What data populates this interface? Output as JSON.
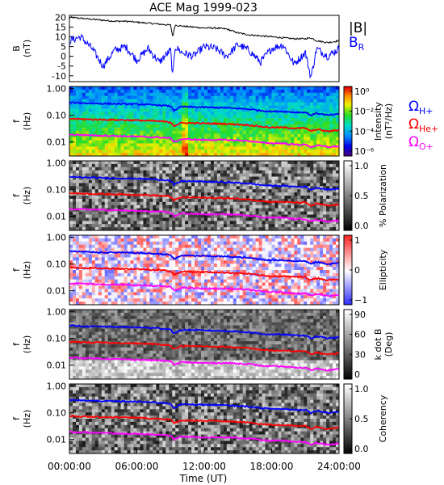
{
  "title": "ACE Mag 1999-023",
  "time_axis": {
    "label": "Time (UT)",
    "ticks": [
      "00:00:00",
      "06:00:00",
      "12:00:00",
      "18:00:00",
      "24:00:00"
    ],
    "range_hours": [
      0,
      24
    ]
  },
  "colors": {
    "B_total": "#000000",
    "B_R": "#0000ff",
    "H": "#0000ff",
    "He": "#ff0000",
    "O": "#ff00ff"
  },
  "chart_data": [
    {
      "type": "line",
      "panel": "magnetic-field",
      "ylabel": "B",
      "yunit": "(nT)",
      "ylim": [
        -13,
        21
      ],
      "yticks": [
        20,
        15,
        10,
        5,
        0,
        -5,
        -10
      ],
      "legend": [
        {
          "name": "|B|",
          "color": "#000000"
        },
        {
          "name": "B",
          "sub": "R",
          "color": "#0000ff"
        }
      ],
      "x": [
        0,
        1,
        2,
        3,
        4,
        5,
        6,
        7,
        8,
        9,
        9.2,
        9.4,
        10,
        11,
        12,
        13,
        14,
        15,
        16,
        17,
        18,
        19,
        20,
        21,
        21.5,
        22,
        23,
        24
      ],
      "series": [
        {
          "name": "|B|",
          "color": "#000000",
          "values": [
            20,
            19.5,
            19,
            18.5,
            18,
            18,
            17.5,
            17,
            16.5,
            16,
            10,
            16,
            15.5,
            15,
            14.5,
            14.5,
            14,
            12,
            11,
            10.5,
            10,
            9.5,
            9,
            9,
            9.5,
            8,
            7,
            8
          ]
        },
        {
          "name": "B_R",
          "color": "#0000ff",
          "values": [
            8,
            10,
            4,
            -5,
            3,
            5,
            -2,
            4,
            -3,
            3,
            -11,
            5,
            2,
            0,
            5,
            4,
            0,
            6,
            3,
            -3,
            4,
            6,
            -4,
            2,
            -11,
            4,
            0,
            4
          ]
        }
      ]
    },
    {
      "type": "heatmap",
      "panel": "intensity",
      "ylabel": "f",
      "yunit": "(Hz)",
      "ylim_log": [
        0.003,
        1.2
      ],
      "yticks": [
        "1.00",
        "0.10",
        "0.01"
      ],
      "colorbar": {
        "label": "Intensity",
        "unit": "(nT²/Hz)",
        "palette": "rainbow",
        "ticks": [
          "10⁰",
          "10⁻²",
          "10⁻⁴",
          "10⁻⁶"
        ]
      },
      "lines": [
        "Ω_H+",
        "Ω_He+",
        "Ω_O+"
      ],
      "line_labels": [
        {
          "base": "Ω",
          "sub": "H+",
          "color": "#0000ff"
        },
        {
          "base": "Ω",
          "sub": "He+",
          "color": "#ff0000"
        },
        {
          "base": "Ω",
          "sub": "O+",
          "color": "#ff00ff"
        }
      ]
    },
    {
      "type": "heatmap",
      "panel": "polarization",
      "ylabel": "f",
      "yunit": "(Hz)",
      "yticks": [
        "1.00",
        "0.10",
        "0.01"
      ],
      "colorbar": {
        "label": "% Polarization",
        "palette": "gray",
        "ticks": [
          "1.0",
          "0.5",
          "0.0"
        ]
      }
    },
    {
      "type": "heatmap",
      "panel": "ellipticity",
      "ylabel": "f",
      "yunit": "(Hz)",
      "yticks": [
        "1.00",
        "0.10",
        "0.01"
      ],
      "colorbar": {
        "label": "Ellipticity",
        "palette": "bluewhitered",
        "ticks": [
          "1",
          "0",
          "−1"
        ]
      }
    },
    {
      "type": "heatmap",
      "panel": "k-dot-b",
      "ylabel": "f",
      "yunit": "(Hz)",
      "yticks": [
        "1.00",
        "0.10",
        "0.01"
      ],
      "colorbar": {
        "label": "k dot B",
        "unit": "(Deg)",
        "palette": "gray",
        "ticks": [
          "90",
          "60",
          "30",
          "0"
        ]
      }
    },
    {
      "type": "heatmap",
      "panel": "coherency",
      "ylabel": "f",
      "yunit": "(Hz)",
      "yticks": [
        "1.00",
        "0.10",
        "0.01"
      ],
      "colorbar": {
        "label": "Coherency",
        "palette": "gray",
        "ticks": [
          "1.0",
          "0.5",
          "0.0"
        ]
      }
    }
  ],
  "cyclotron_lines": {
    "x": [
      0,
      2,
      4,
      6,
      8,
      9,
      9.3,
      10,
      12,
      14,
      16,
      17,
      18,
      19,
      20,
      21,
      21.5,
      22,
      23,
      24
    ],
    "H+": [
      0.3,
      0.28,
      0.27,
      0.26,
      0.24,
      0.22,
      0.15,
      0.21,
      0.2,
      0.19,
      0.17,
      0.15,
      0.14,
      0.14,
      0.13,
      0.13,
      0.1,
      0.12,
      0.1,
      0.11
    ],
    "He+": [
      0.075,
      0.07,
      0.068,
      0.065,
      0.06,
      0.055,
      0.04,
      0.052,
      0.05,
      0.048,
      0.043,
      0.038,
      0.035,
      0.035,
      0.033,
      0.033,
      0.025,
      0.03,
      0.025,
      0.028
    ],
    "O+": [
      0.019,
      0.018,
      0.017,
      0.016,
      0.015,
      0.014,
      0.01,
      0.013,
      0.012,
      0.012,
      0.011,
      0.0095,
      0.009,
      0.009,
      0.008,
      0.008,
      0.0065,
      0.0075,
      0.0065,
      0.007
    ]
  }
}
